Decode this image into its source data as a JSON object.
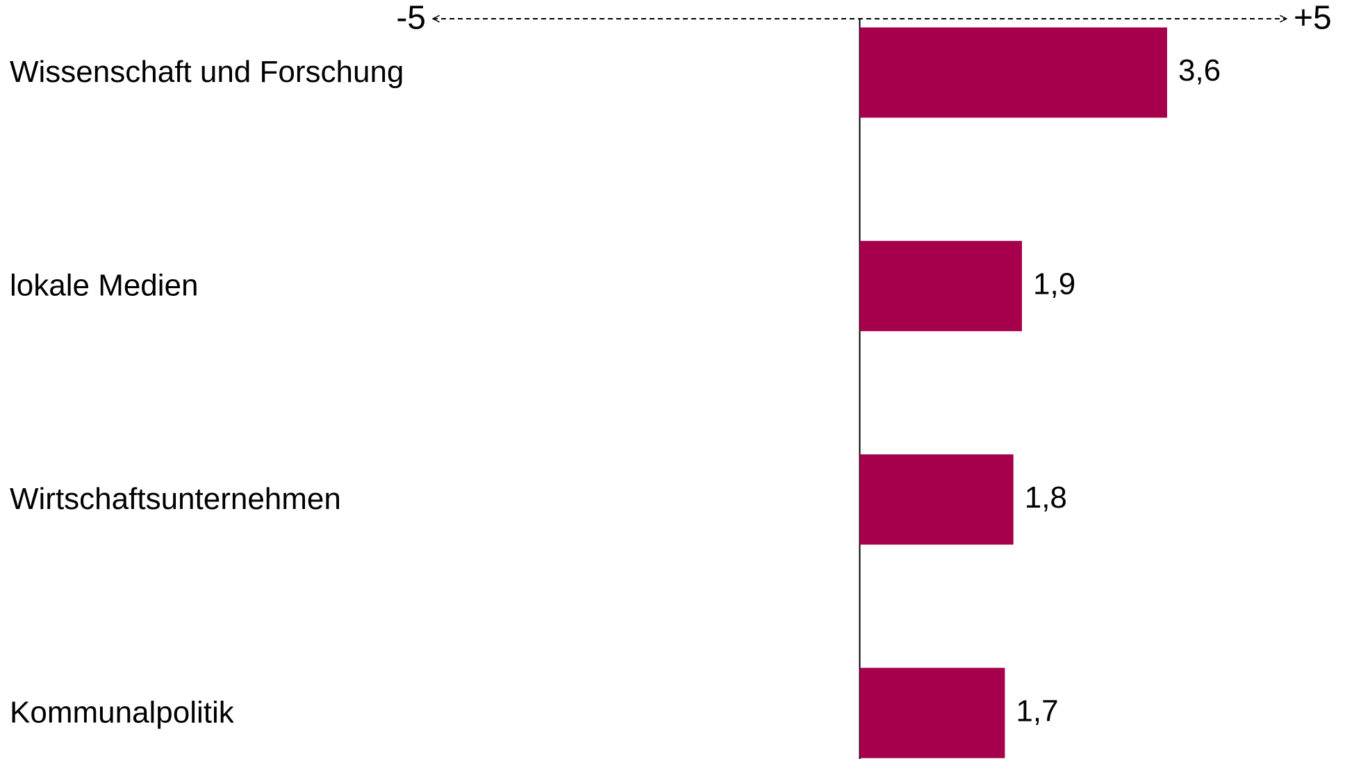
{
  "chart_data": {
    "type": "hbar",
    "categories": [
      "Wissenschaft und Forschung",
      "lokale Medien",
      "Wirtschaftsunternehmen",
      "Kommunalpolitik"
    ],
    "values": [
      3.6,
      1.9,
      1.8,
      1.7
    ],
    "value_labels": [
      "3,6",
      "1,9",
      "1,8",
      "1,7"
    ],
    "color": "#a6004c",
    "xlim": [
      -5,
      5
    ],
    "xticks": [
      {
        "value": -5,
        "label": "-5"
      },
      {
        "value": 5,
        "label": "+5"
      }
    ]
  }
}
